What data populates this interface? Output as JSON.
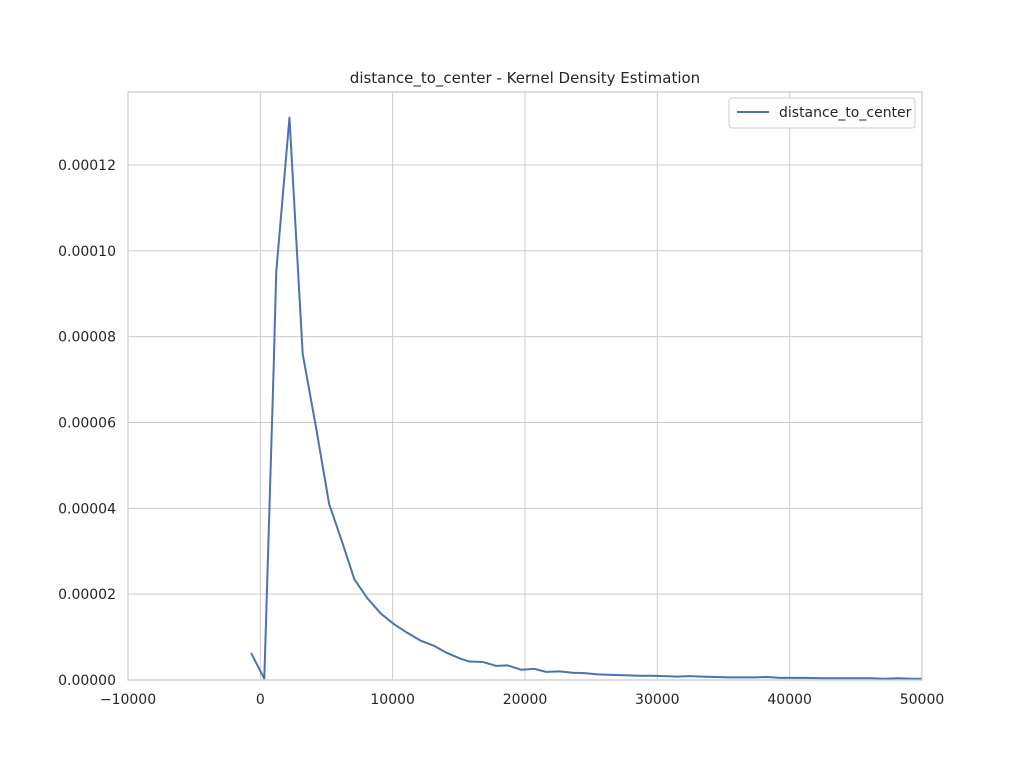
{
  "chart_data": {
    "type": "line",
    "title": "distance_to_center - Kernel Density Estimation",
    "xlabel": "",
    "ylabel": "",
    "xlim": [
      -10000,
      50000
    ],
    "ylim": [
      0,
      0.000137
    ],
    "xticks": [
      -10000,
      0,
      10000,
      20000,
      30000,
      40000,
      50000
    ],
    "xtick_labels": [
      "−10000",
      "0",
      "10000",
      "20000",
      "30000",
      "40000",
      "50000"
    ],
    "yticks": [
      0,
      2e-05,
      4e-05,
      6e-05,
      8e-05,
      0.0001,
      0.00012
    ],
    "ytick_labels": [
      "0.00000",
      "0.00002",
      "0.00004",
      "0.00006",
      "0.00008",
      "0.00010",
      "0.00012"
    ],
    "grid": true,
    "legend": {
      "position": "top-right",
      "entries": [
        "distance_to_center"
      ]
    },
    "series": [
      {
        "name": "distance_to_center",
        "color": "#4c72b0",
        "x": [
          -700,
          300,
          1000,
          1200,
          2200,
          3200,
          4200,
          5200,
          6200,
          7100,
          8100,
          9100,
          10100,
          11100,
          12100,
          13100,
          14100,
          15100,
          15800,
          16800,
          17800,
          18700,
          19700,
          20700,
          21600,
          22600,
          23600,
          24500,
          25500,
          26500,
          27500,
          28500,
          29500,
          30500,
          31500,
          32400,
          33400,
          34400,
          35400,
          36300,
          37300,
          38300,
          39300,
          40300,
          41300,
          42300,
          43200,
          44200,
          45200,
          46200,
          47200,
          48200,
          49200,
          50000
        ],
        "y": [
          6.3e-06,
          3e-07,
          7.2e-05,
          9.5e-05,
          0.000131,
          7.6e-05,
          5.9e-05,
          4.1e-05,
          3.2e-05,
          2.35e-05,
          1.9e-05,
          1.55e-05,
          1.3e-05,
          1.1e-05,
          9.2e-06,
          8e-06,
          6.3e-06,
          5e-06,
          4.3e-06,
          4.2e-06,
          3.3e-06,
          3.4e-06,
          2.4e-06,
          2.6e-06,
          1.9e-06,
          2e-06,
          1.7e-06,
          1.6e-06,
          1.3e-06,
          1.2e-06,
          1.1e-06,
          1e-06,
          1e-06,
          9e-07,
          8e-07,
          9e-07,
          8e-07,
          7e-07,
          6e-07,
          6e-07,
          6e-07,
          7e-07,
          5e-07,
          5e-07,
          5e-07,
          4e-07,
          4e-07,
          4e-07,
          4e-07,
          4e-07,
          3e-07,
          4e-07,
          3e-07,
          3e-07
        ]
      }
    ]
  }
}
